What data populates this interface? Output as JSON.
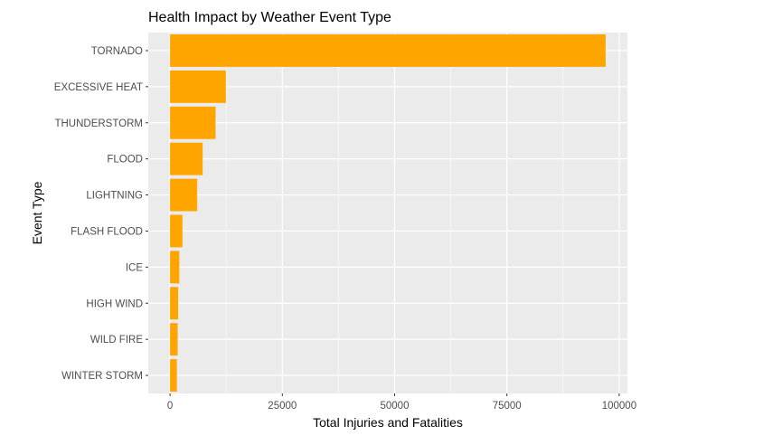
{
  "chart_data": {
    "type": "bar",
    "orientation": "horizontal",
    "title": "Health Impact by Weather Event Type",
    "xlabel": "Total Injuries and Fatalities",
    "ylabel": "Event Type",
    "categories": [
      "TORNADO",
      "EXCESSIVE HEAT",
      "THUNDERSTORM",
      "FLOOD",
      "LIGHTNING",
      "FLASH FLOOD",
      "ICE",
      "HIGH WIND",
      "WILD FIRE",
      "WINTER STORM"
    ],
    "values": [
      96979,
      12421,
      10128,
      7259,
      6046,
      2755,
      2064,
      1812,
      1696,
      1527
    ],
    "x_ticks": [
      0,
      25000,
      50000,
      75000,
      100000
    ],
    "x_tick_labels": [
      "0",
      "25000",
      "50000",
      "75000",
      "100000"
    ],
    "xlim": [
      -4849,
      101828
    ],
    "bar_color": "#FFA500",
    "panel_background": "#EBEBEB",
    "grid": true,
    "legend": "none"
  }
}
